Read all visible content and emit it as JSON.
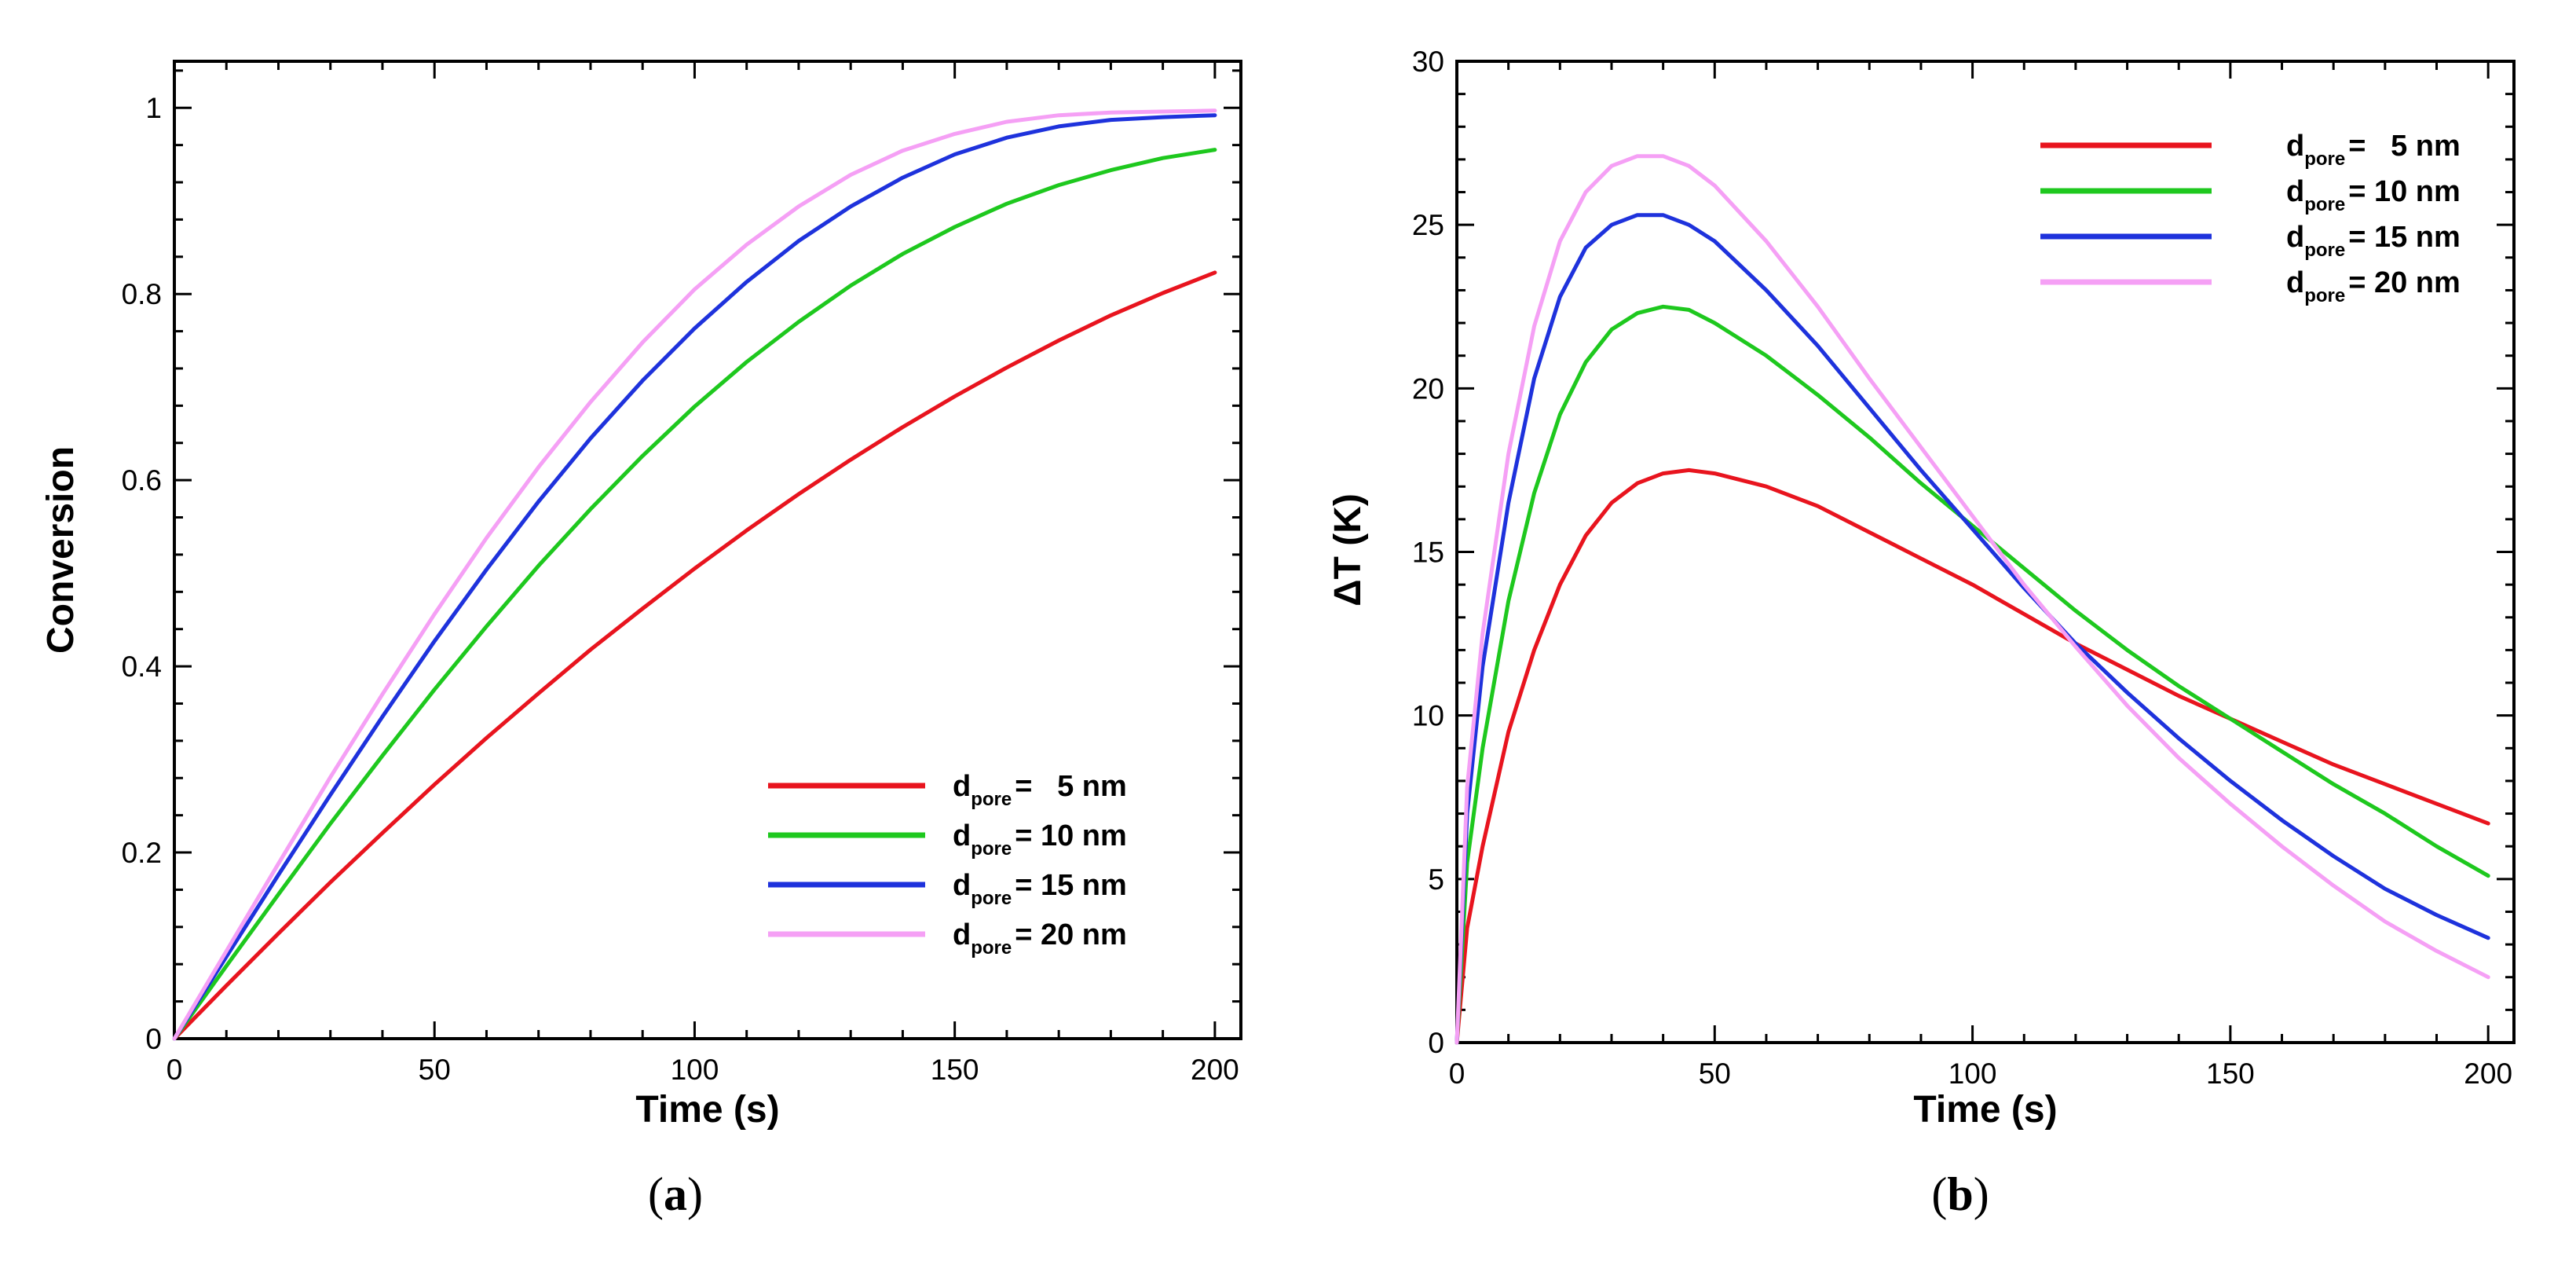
{
  "chart_data": [
    {
      "type": "line",
      "panel": "(a)",
      "panel_letter": "a",
      "xlabel": "Time (s)",
      "ylabel": "Conversion",
      "xlim": [
        0,
        205
      ],
      "ylim": [
        0,
        1.05
      ],
      "xticks": [
        0,
        50,
        100,
        150,
        200
      ],
      "xtick_labels": [
        "0",
        "50",
        "100",
        "150",
        "200"
      ],
      "yticks": [
        0,
        0.2,
        0.4,
        0.6,
        0.8,
        1
      ],
      "ytick_labels": [
        "0",
        "0.2",
        "0.4",
        "0.6",
        "0.8",
        "1"
      ],
      "legend_position": "bottom-right",
      "x": [
        0,
        10,
        20,
        30,
        40,
        50,
        60,
        70,
        80,
        90,
        100,
        110,
        120,
        130,
        140,
        150,
        160,
        170,
        180,
        190,
        200
      ],
      "series": [
        {
          "name": "5 nm",
          "legend_prefix": "d",
          "legend_sub": "pore",
          "legend_value": "=   5 nm",
          "color": "#e8141e",
          "values": [
            0,
            0.057,
            0.113,
            0.168,
            0.221,
            0.273,
            0.323,
            0.371,
            0.418,
            0.462,
            0.505,
            0.546,
            0.585,
            0.622,
            0.657,
            0.69,
            0.721,
            0.75,
            0.777,
            0.801,
            0.823
          ]
        },
        {
          "name": "10 nm",
          "legend_prefix": "d",
          "legend_sub": "pore",
          "legend_value": "= 10 nm",
          "color": "#1ec81e",
          "values": [
            0,
            0.078,
            0.155,
            0.231,
            0.304,
            0.375,
            0.443,
            0.508,
            0.569,
            0.626,
            0.679,
            0.727,
            0.77,
            0.809,
            0.843,
            0.872,
            0.897,
            0.917,
            0.933,
            0.946,
            0.955
          ]
        },
        {
          "name": "15 nm",
          "legend_prefix": "d",
          "legend_sub": "pore",
          "legend_value": "= 15 nm",
          "color": "#1e32dc",
          "values": [
            0,
            0.088,
            0.176,
            0.262,
            0.346,
            0.427,
            0.504,
            0.577,
            0.645,
            0.707,
            0.763,
            0.813,
            0.857,
            0.894,
            0.925,
            0.95,
            0.968,
            0.98,
            0.987,
            0.99,
            0.992
          ]
        },
        {
          "name": "20 nm",
          "legend_prefix": "d",
          "legend_sub": "pore",
          "legend_value": "= 20 nm",
          "color": "#f5a0f5",
          "values": [
            0,
            0.094,
            0.188,
            0.281,
            0.37,
            0.456,
            0.538,
            0.614,
            0.684,
            0.748,
            0.805,
            0.853,
            0.894,
            0.928,
            0.954,
            0.972,
            0.985,
            0.992,
            0.995,
            0.996,
            0.997
          ]
        }
      ]
    },
    {
      "type": "line",
      "panel": "(b)",
      "panel_letter": "b",
      "xlabel": "Time (s)",
      "ylabel": "ΔT (K)",
      "xlim": [
        0,
        205
      ],
      "ylim": [
        0,
        30
      ],
      "xticks": [
        0,
        50,
        100,
        150,
        200
      ],
      "xtick_labels": [
        "0",
        "50",
        "100",
        "150",
        "200"
      ],
      "yticks": [
        0,
        5,
        10,
        15,
        20,
        25,
        30
      ],
      "ytick_labels": [
        "0",
        "5",
        "10",
        "15",
        "20",
        "25",
        "30"
      ],
      "legend_position": "top-right",
      "x": [
        0,
        2,
        5,
        10,
        15,
        20,
        25,
        30,
        35,
        40,
        45,
        50,
        60,
        70,
        80,
        90,
        100,
        110,
        120,
        130,
        140,
        150,
        160,
        170,
        180,
        190,
        200
      ],
      "series": [
        {
          "name": "5 nm",
          "legend_prefix": "d",
          "legend_sub": "pore",
          "legend_value": "=   5 nm",
          "color": "#e8141e",
          "values": [
            0,
            3.5,
            6.0,
            9.5,
            12.0,
            14.0,
            15.5,
            16.5,
            17.1,
            17.4,
            17.5,
            17.4,
            17.0,
            16.4,
            15.6,
            14.8,
            14.0,
            13.1,
            12.2,
            11.4,
            10.6,
            9.9,
            9.2,
            8.5,
            7.9,
            7.3,
            6.7
          ]
        },
        {
          "name": "10 nm",
          "legend_prefix": "d",
          "legend_sub": "pore",
          "legend_value": "= 10 nm",
          "color": "#1ec81e",
          "values": [
            0,
            5.5,
            9.0,
            13.5,
            16.8,
            19.2,
            20.8,
            21.8,
            22.3,
            22.5,
            22.4,
            22.0,
            21.0,
            19.8,
            18.5,
            17.1,
            15.8,
            14.5,
            13.2,
            12.0,
            10.9,
            9.9,
            8.9,
            7.9,
            7.0,
            6.0,
            5.1
          ]
        },
        {
          "name": "15 nm",
          "legend_prefix": "d",
          "legend_sub": "pore",
          "legend_value": "= 15 nm",
          "color": "#1e32dc",
          "values": [
            0,
            7.0,
            11.5,
            16.5,
            20.3,
            22.8,
            24.3,
            25.0,
            25.3,
            25.3,
            25.0,
            24.5,
            23.0,
            21.3,
            19.4,
            17.5,
            15.7,
            13.9,
            12.2,
            10.7,
            9.3,
            8.0,
            6.8,
            5.7,
            4.7,
            3.9,
            3.2
          ]
        },
        {
          "name": "20 nm",
          "legend_prefix": "d",
          "legend_sub": "pore",
          "legend_value": "= 20 nm",
          "color": "#f5a0f5",
          "values": [
            0,
            7.8,
            12.5,
            18.0,
            21.9,
            24.5,
            26.0,
            26.8,
            27.1,
            27.1,
            26.8,
            26.2,
            24.5,
            22.5,
            20.3,
            18.2,
            16.1,
            14.0,
            12.1,
            10.3,
            8.7,
            7.3,
            6.0,
            4.8,
            3.7,
            2.8,
            2.0
          ]
        }
      ]
    }
  ]
}
